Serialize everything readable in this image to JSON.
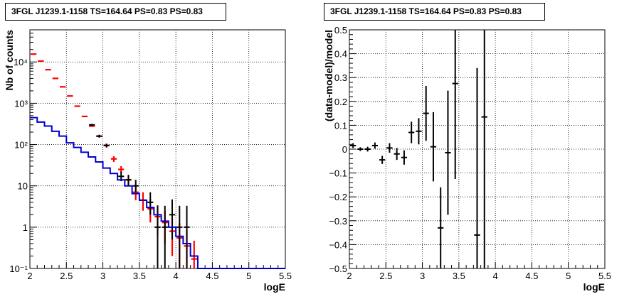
{
  "chart_data": [
    {
      "type": "histogram",
      "title": "3FGL J1239.1-1158 TS=164.64 PS=0.83 PS=0.83",
      "xlabel": "logE",
      "ylabel": "Nb of counts",
      "xlim": [
        2.0,
        5.5
      ],
      "ylim": [
        0.1,
        60000
      ],
      "yscale": "log",
      "grid": true,
      "x_ticks": [
        "2",
        "2.5",
        "3",
        "3.5",
        "4",
        "4.5",
        "5",
        "5.5"
      ],
      "y_ticks": [
        "10⁻¹",
        "1",
        "10",
        "10²",
        "10³",
        "10⁴"
      ],
      "bin_width": 0.1,
      "series": [
        {
          "color": "#ff0000",
          "style": "markers",
          "x": [
            2.05,
            2.15,
            2.25,
            2.35,
            2.45,
            2.55,
            2.65,
            2.75,
            2.85,
            2.95,
            3.05,
            3.15,
            3.25,
            3.35,
            3.45,
            3.55,
            3.65,
            3.75,
            3.85,
            3.95,
            4.05,
            4.15,
            4.25
          ],
          "y": [
            15500,
            10500,
            6500,
            4000,
            2500,
            1500,
            850,
            480,
            280,
            160,
            95,
            45,
            25,
            14,
            7,
            4.5,
            2.8,
            1.8,
            1.3,
            0.8,
            0.55,
            0.35,
            0.17
          ],
          "err_low": [
            0,
            0,
            0,
            0,
            0,
            0,
            0,
            0,
            0,
            0,
            10,
            7,
            5,
            4,
            2.5,
            2,
            1.5,
            1.2,
            0.9,
            0.6,
            0.45,
            0.3,
            0.15
          ],
          "err_high": [
            0,
            0,
            0,
            0,
            0,
            0,
            0,
            0,
            0,
            0,
            10,
            7,
            5,
            4,
            3,
            2.5,
            2,
            1.6,
            1.2,
            0.9,
            0.7,
            0.5,
            0.3
          ]
        },
        {
          "color": "#000000",
          "style": "markers",
          "x": [
            2.85,
            2.95,
            3.05,
            3.25,
            3.35,
            3.45,
            3.65,
            3.75,
            3.85,
            3.95,
            4.05,
            4.15
          ],
          "y": [
            300,
            160,
            95,
            17,
            14,
            10,
            4,
            1,
            1,
            2,
            1,
            1
          ],
          "err_low": [
            17,
            13,
            10,
            4,
            3.7,
            3,
            2,
            0.95,
            0.95,
            1.5,
            0.95,
            0.95
          ],
          "err_high": [
            17,
            13,
            10,
            5,
            4.5,
            4,
            3,
            2.3,
            2.3,
            2.7,
            2.3,
            2.3
          ]
        },
        {
          "color": "#0000cc",
          "style": "step",
          "x_edges": [
            2.0,
            2.1,
            2.2,
            2.3,
            2.4,
            2.5,
            2.6,
            2.7,
            2.8,
            2.9,
            3.0,
            3.1,
            3.2,
            3.3,
            3.4,
            3.5,
            3.6,
            3.7,
            3.8,
            3.9,
            4.0,
            4.1,
            4.2,
            4.3,
            5.5
          ],
          "y": [
            450,
            350,
            280,
            210,
            160,
            110,
            85,
            65,
            50,
            38,
            27,
            20,
            14,
            10,
            6.5,
            4.5,
            3,
            2,
            1.4,
            1,
            0.6,
            0.4,
            0.2,
            0.1
          ]
        }
      ]
    },
    {
      "type": "errorbar",
      "title": "3FGL J1239.1-1158 TS=164.64 PS=0.83 PS=0.83",
      "xlabel": "logE",
      "ylabel": "(data-model)/model",
      "xlim": [
        2.0,
        5.5
      ],
      "ylim": [
        -0.5,
        0.5
      ],
      "grid": true,
      "x_ticks": [
        "2",
        "2.5",
        "3",
        "3.5",
        "4",
        "4.5",
        "5",
        "5.5"
      ],
      "y_ticks": [
        "−0.5",
        "−0.4",
        "−0.3",
        "−0.2",
        "−0.1",
        "0",
        "0.1",
        "0.2",
        "0.3",
        "0.4",
        "0.5"
      ],
      "bin_width": 0.1,
      "series": [
        {
          "color": "#000000",
          "x": [
            2.05,
            2.15,
            2.25,
            2.35,
            2.45,
            2.55,
            2.65,
            2.75,
            2.85,
            2.95,
            3.05,
            3.15,
            3.25,
            3.35,
            3.45,
            3.75,
            3.85
          ],
          "y": [
            0.015,
            0.0,
            0.0,
            0.015,
            -0.045,
            0.005,
            -0.02,
            -0.035,
            0.07,
            0.075,
            0.15,
            0.01,
            -0.33,
            -0.015,
            0.275,
            -0.36,
            0.135
          ],
          "err": [
            0.01,
            0.008,
            0.01,
            0.013,
            0.017,
            0.02,
            0.025,
            0.03,
            0.045,
            0.055,
            0.115,
            0.145,
            0.17,
            0.26,
            0.4,
            0.7,
            0.9
          ]
        }
      ]
    }
  ]
}
